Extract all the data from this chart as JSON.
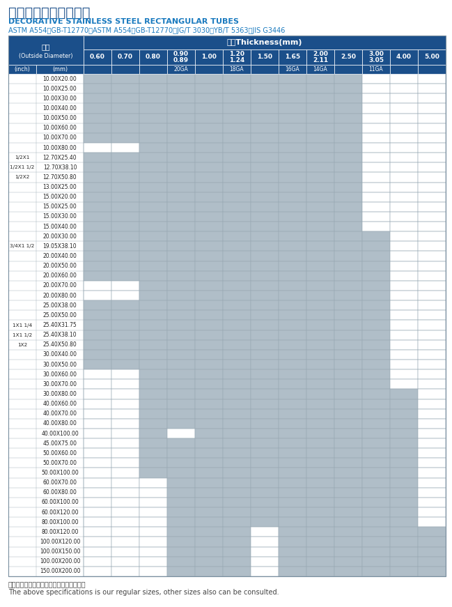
{
  "title_cn": "不锈钢装饰管矩管系列",
  "title_en": "DECORATIVE STAINLESS STEEL RECTANGULAR TUBES",
  "subtitle": "ASTM A554、GB-T12770、ASTM A554、GB-T12770、JG/T 3030、YB/T 5363、JIS G3446",
  "footer_cn": "以上为常规尺寸，如有其他尺寸亦可咏询。",
  "footer_en": "The above specifications is our regular sizes, other sizes also can be consulted.",
  "col_header_top": "厚度Thickness(mm)",
  "col_header_od_cn": "外径",
  "col_header_od_en": "(Outside Diameter)",
  "col_header_inch": "(inch)",
  "col_header_mm": "(mm)",
  "thickness_cols": [
    "0.60",
    "0.70",
    "0.80",
    "0.90\n0.89",
    "1.00",
    "1.20\n1.24",
    "1.50",
    "1.65",
    "2.00\n2.11",
    "2.50",
    "3.00\n3.05",
    "4.00",
    "5.00"
  ],
  "ga_labels": {
    "3": "20GA",
    "5": "18GA",
    "7": "16GA",
    "8": "14GA",
    "10": "11GA"
  },
  "rows": [
    {
      "inch": "",
      "mm": "10.00X20.00",
      "filled": [
        0,
        1,
        2,
        3,
        4,
        5,
        6,
        7,
        8,
        9
      ]
    },
    {
      "inch": "",
      "mm": "10.00X25.00",
      "filled": [
        0,
        1,
        2,
        3,
        4,
        5,
        6,
        7,
        8,
        9
      ]
    },
    {
      "inch": "",
      "mm": "10.00X30.00",
      "filled": [
        0,
        1,
        2,
        3,
        4,
        5,
        6,
        7,
        8,
        9
      ]
    },
    {
      "inch": "",
      "mm": "10.00X40.00",
      "filled": [
        0,
        1,
        2,
        3,
        4,
        5,
        6,
        7,
        8,
        9
      ]
    },
    {
      "inch": "",
      "mm": "10.00X50.00",
      "filled": [
        0,
        1,
        2,
        3,
        4,
        5,
        6,
        7,
        8,
        9
      ]
    },
    {
      "inch": "",
      "mm": "10.00X60.00",
      "filled": [
        0,
        1,
        2,
        3,
        4,
        5,
        6,
        7,
        8,
        9
      ]
    },
    {
      "inch": "",
      "mm": "10.00X70.00",
      "filled": [
        0,
        1,
        2,
        3,
        4,
        5,
        6,
        7,
        8,
        9
      ]
    },
    {
      "inch": "",
      "mm": "10.00X80.00",
      "filled": [
        2,
        3,
        4,
        5,
        6,
        7,
        8,
        9
      ]
    },
    {
      "inch": "1/2X1",
      "mm": "12.70X25.40",
      "filled": [
        0,
        1,
        2,
        3,
        4,
        5,
        6,
        7,
        8,
        9
      ]
    },
    {
      "inch": "1/2X1 1/2",
      "mm": "12.70X38.10",
      "filled": [
        0,
        1,
        2,
        3,
        4,
        5,
        6,
        7,
        8,
        9
      ]
    },
    {
      "inch": "1/2X2",
      "mm": "12.70X50.80",
      "filled": [
        0,
        1,
        2,
        3,
        4,
        5,
        6,
        7,
        8,
        9
      ]
    },
    {
      "inch": "",
      "mm": "13.00X25.00",
      "filled": [
        0,
        1,
        2,
        3,
        4,
        5,
        6,
        7,
        8,
        9
      ]
    },
    {
      "inch": "",
      "mm": "15.00X20.00",
      "filled": [
        0,
        1,
        2,
        3,
        4,
        5,
        6,
        7,
        8,
        9
      ]
    },
    {
      "inch": "",
      "mm": "15.00X25.00",
      "filled": [
        0,
        1,
        2,
        3,
        4,
        5,
        6,
        7,
        8,
        9
      ]
    },
    {
      "inch": "",
      "mm": "15.00X30.00",
      "filled": [
        0,
        1,
        2,
        3,
        4,
        5,
        6,
        7,
        8,
        9
      ]
    },
    {
      "inch": "",
      "mm": "15.00X40.00",
      "filled": [
        0,
        1,
        2,
        3,
        4,
        5,
        6,
        7,
        8,
        9
      ]
    },
    {
      "inch": "",
      "mm": "20.00X30.00",
      "filled": [
        0,
        1,
        2,
        3,
        4,
        5,
        6,
        7,
        8,
        9,
        10
      ]
    },
    {
      "inch": "3/4X1 1/2",
      "mm": "19.05X38.10",
      "filled": [
        0,
        1,
        2,
        3,
        4,
        5,
        6,
        7,
        8,
        9,
        10
      ]
    },
    {
      "inch": "",
      "mm": "20.00X40.00",
      "filled": [
        0,
        1,
        2,
        3,
        4,
        5,
        6,
        7,
        8,
        9,
        10
      ]
    },
    {
      "inch": "",
      "mm": "20.00X50.00",
      "filled": [
        0,
        1,
        2,
        3,
        4,
        5,
        6,
        7,
        8,
        9,
        10
      ]
    },
    {
      "inch": "",
      "mm": "20.00X60.00",
      "filled": [
        0,
        1,
        2,
        3,
        4,
        5,
        6,
        7,
        8,
        9,
        10
      ]
    },
    {
      "inch": "",
      "mm": "20.00X70.00",
      "filled": [
        2,
        3,
        4,
        5,
        6,
        7,
        8,
        9,
        10
      ]
    },
    {
      "inch": "",
      "mm": "20.00X80.00",
      "filled": [
        2,
        3,
        4,
        5,
        6,
        7,
        8,
        9,
        10
      ]
    },
    {
      "inch": "",
      "mm": "25.00X38.00",
      "filled": [
        0,
        1,
        2,
        3,
        4,
        5,
        6,
        7,
        8,
        9,
        10
      ]
    },
    {
      "inch": "",
      "mm": "25.00X50.00",
      "filled": [
        0,
        1,
        2,
        3,
        4,
        5,
        6,
        7,
        8,
        9,
        10
      ]
    },
    {
      "inch": "1X1 1/4",
      "mm": "25.40X31.75",
      "filled": [
        0,
        1,
        2,
        3,
        4,
        5,
        6,
        7,
        8,
        9,
        10
      ]
    },
    {
      "inch": "1X1 1/2",
      "mm": "25.40X38.10",
      "filled": [
        0,
        1,
        2,
        3,
        4,
        5,
        6,
        7,
        8,
        9,
        10
      ]
    },
    {
      "inch": "1X2",
      "mm": "25.40X50.80",
      "filled": [
        0,
        1,
        2,
        3,
        4,
        5,
        6,
        7,
        8,
        9,
        10
      ]
    },
    {
      "inch": "",
      "mm": "30.00X40.00",
      "filled": [
        0,
        1,
        2,
        3,
        4,
        5,
        6,
        7,
        8,
        9,
        10
      ]
    },
    {
      "inch": "",
      "mm": "30.00X50.00",
      "filled": [
        0,
        1,
        2,
        3,
        4,
        5,
        6,
        7,
        8,
        9,
        10
      ]
    },
    {
      "inch": "",
      "mm": "30.00X60.00",
      "filled": [
        2,
        3,
        4,
        5,
        6,
        7,
        8,
        9,
        10
      ]
    },
    {
      "inch": "",
      "mm": "30.00X70.00",
      "filled": [
        2,
        3,
        4,
        5,
        6,
        7,
        8,
        9,
        10
      ]
    },
    {
      "inch": "",
      "mm": "30.00X80.00",
      "filled": [
        2,
        3,
        4,
        5,
        6,
        7,
        8,
        9,
        10,
        11
      ]
    },
    {
      "inch": "",
      "mm": "40.00X60.00",
      "filled": [
        2,
        3,
        4,
        5,
        6,
        7,
        8,
        9,
        10,
        11
      ]
    },
    {
      "inch": "",
      "mm": "40.00X70.00",
      "filled": [
        2,
        3,
        4,
        5,
        6,
        7,
        8,
        9,
        10,
        11
      ]
    },
    {
      "inch": "",
      "mm": "40.00X80.00",
      "filled": [
        2,
        3,
        4,
        5,
        6,
        7,
        8,
        9,
        10,
        11
      ]
    },
    {
      "inch": "",
      "mm": "40.00X100.00",
      "filled": [
        2,
        4,
        5,
        6,
        7,
        8,
        9,
        10,
        11
      ]
    },
    {
      "inch": "",
      "mm": "45.00X75.00",
      "filled": [
        2,
        3,
        4,
        5,
        6,
        7,
        8,
        9,
        10,
        11
      ]
    },
    {
      "inch": "",
      "mm": "50.00X60.00",
      "filled": [
        2,
        3,
        4,
        5,
        6,
        7,
        8,
        9,
        10,
        11
      ]
    },
    {
      "inch": "",
      "mm": "50.00X70.00",
      "filled": [
        2,
        3,
        4,
        5,
        6,
        7,
        8,
        9,
        10,
        11
      ]
    },
    {
      "inch": "",
      "mm": "50.00X100.00",
      "filled": [
        2,
        3,
        4,
        5,
        6,
        7,
        8,
        9,
        10,
        11
      ]
    },
    {
      "inch": "",
      "mm": "60.00X70.00",
      "filled": [
        3,
        4,
        5,
        6,
        7,
        8,
        9,
        10,
        11
      ]
    },
    {
      "inch": "",
      "mm": "60.00X80.00",
      "filled": [
        3,
        4,
        5,
        6,
        7,
        8,
        9,
        10,
        11
      ]
    },
    {
      "inch": "",
      "mm": "60.00X100.00",
      "filled": [
        3,
        4,
        5,
        6,
        7,
        8,
        9,
        10,
        11
      ]
    },
    {
      "inch": "",
      "mm": "60.00X120.00",
      "filled": [
        3,
        4,
        5,
        6,
        7,
        8,
        9,
        10,
        11
      ]
    },
    {
      "inch": "",
      "mm": "80.00X100.00",
      "filled": [
        3,
        4,
        5,
        6,
        7,
        8,
        9,
        10,
        11
      ]
    },
    {
      "inch": "",
      "mm": "80.00X120.00",
      "filled": [
        3,
        4,
        5,
        7,
        8,
        9,
        10,
        11,
        12
      ]
    },
    {
      "inch": "",
      "mm": "100.00X120.00",
      "filled": [
        3,
        4,
        5,
        7,
        8,
        9,
        10,
        11,
        12
      ]
    },
    {
      "inch": "",
      "mm": "100.00X150.00",
      "filled": [
        3,
        4,
        5,
        7,
        8,
        9,
        10,
        11,
        12
      ]
    },
    {
      "inch": "",
      "mm": "100.00X200.00",
      "filled": [
        3,
        4,
        5,
        7,
        8,
        9,
        10,
        11,
        12
      ]
    },
    {
      "inch": "",
      "mm": "150.00X200.00",
      "filled": [
        3,
        4,
        5,
        7,
        8,
        9,
        10,
        11,
        12
      ]
    }
  ],
  "header_bg": "#1b4f8a",
  "header_text": "#ffffff",
  "cell_filled": "#b0bec8",
  "cell_empty": "#ffffff",
  "title_color_cn": "#1b4f8a",
  "title_color_en": "#1a7abf",
  "border_color": "#7a8fa0",
  "line_color": "#9aaab5"
}
